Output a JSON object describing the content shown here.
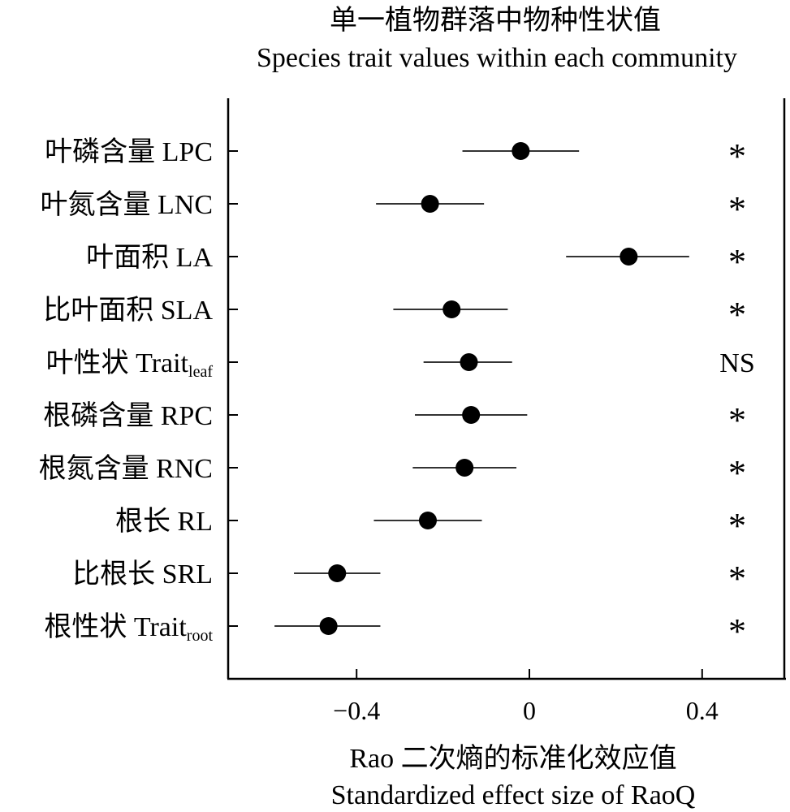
{
  "chart_data": {
    "type": "scatter",
    "title": "单一植物群落中物种性状值",
    "subtitle": "Species trait values within each community",
    "xlabel": "Rao 二次熵的标准化效应值",
    "xlabel_en": "Standardized effect size of RaoQ",
    "xlim": [
      -0.7,
      0.6
    ],
    "xticks": [
      -0.4,
      0,
      0.4
    ],
    "xtick_labels": [
      "−0.4",
      "0",
      "0.4"
    ],
    "categories": [
      {
        "label": "叶磷含量 LPC",
        "sub": ""
      },
      {
        "label": "叶氮含量 LNC",
        "sub": ""
      },
      {
        "label": "叶面积 LA",
        "sub": ""
      },
      {
        "label": "比叶面积 SLA",
        "sub": ""
      },
      {
        "label": "叶性状  Trait",
        "sub": "leaf"
      },
      {
        "label": "根磷含量 RPC",
        "sub": ""
      },
      {
        "label": "根氮含量 RNC",
        "sub": ""
      },
      {
        "label": "根长 RL",
        "sub": ""
      },
      {
        "label": "比根长 SRL",
        "sub": ""
      },
      {
        "label": "根性状  Trait",
        "sub": "root"
      }
    ],
    "values": [
      -0.02,
      -0.23,
      0.23,
      -0.18,
      -0.14,
      -0.135,
      -0.15,
      -0.235,
      -0.445,
      -0.465
    ],
    "ci_low": [
      -0.155,
      -0.355,
      0.085,
      -0.315,
      -0.245,
      -0.265,
      -0.27,
      -0.36,
      -0.545,
      -0.59
    ],
    "ci_high": [
      0.115,
      -0.105,
      0.37,
      -0.05,
      -0.04,
      -0.005,
      -0.03,
      -0.11,
      -0.345,
      -0.345
    ],
    "significance": [
      "*",
      "*",
      "*",
      "*",
      "NS",
      "*",
      "*",
      "*",
      "*",
      "*"
    ],
    "grid": false,
    "legend": "none"
  }
}
